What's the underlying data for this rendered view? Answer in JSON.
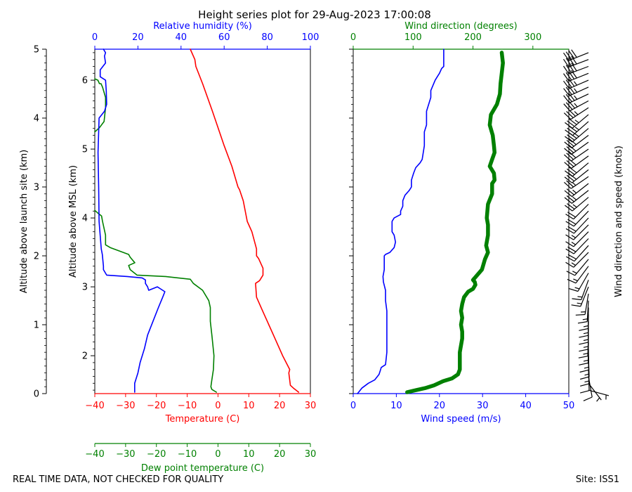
{
  "title": "Height series plot for 29-Aug-2023 17:00:08",
  "footer": {
    "left": "REAL TIME DATA, NOT CHECKED FOR QUALITY",
    "right": "Site: ISS1"
  },
  "colors": {
    "temperature": "#ff0000",
    "humidity": "#0000ff",
    "dewpoint": "#008000",
    "wind_speed": "#0000ff",
    "wind_direction": "#008000",
    "barbs": "#000000"
  },
  "chart_data": [
    {
      "type": "line",
      "name": "thermo-panel",
      "axes": {
        "alt_site": {
          "label": "Altitude above launch site (km)",
          "lim": [
            0,
            5
          ],
          "ticks": [
            "0",
            "1",
            "2",
            "3",
            "4",
            "5"
          ]
        },
        "alt_msl": {
          "label": "Altitude above MSL (km)",
          "lim": [
            1.45,
            6.45
          ],
          "ticks": [
            "2",
            "3",
            "4",
            "5",
            "6"
          ]
        },
        "temperature": {
          "label": "Temperature (C)",
          "lim": [
            -40,
            30
          ],
          "ticks": [
            "−40",
            "−30",
            "−20",
            "−10",
            "0",
            "10",
            "20",
            "30"
          ]
        },
        "dewpoint": {
          "label": "Dew point temperature (C)",
          "lim": [
            -40,
            30
          ],
          "ticks": [
            "−40",
            "−30",
            "−20",
            "−10",
            "0",
            "10",
            "20",
            "30"
          ]
        },
        "humidity": {
          "label": "Relative humidity (%)",
          "lim": [
            0,
            100
          ],
          "ticks": [
            "0",
            "20",
            "40",
            "60",
            "80",
            "100"
          ]
        }
      },
      "series": [
        {
          "name": "Temperature",
          "axis": "temperature",
          "color": "#ff0000",
          "points": [
            [
              26.2,
              0.02
            ],
            [
              24.5,
              0.08
            ],
            [
              23.5,
              0.12
            ],
            [
              23.0,
              0.3
            ],
            [
              23.3,
              0.35
            ],
            [
              21.0,
              0.55
            ],
            [
              18.0,
              0.85
            ],
            [
              14.5,
              1.2
            ],
            [
              12.5,
              1.4
            ],
            [
              12.2,
              1.6
            ],
            [
              13.5,
              1.64
            ],
            [
              14.6,
              1.72
            ],
            [
              14.6,
              1.82
            ],
            [
              13.2,
              1.96
            ],
            [
              12.5,
              2.0
            ],
            [
              12.5,
              2.1
            ],
            [
              11.0,
              2.35
            ],
            [
              9.5,
              2.5
            ],
            [
              8.2,
              2.8
            ],
            [
              7.0,
              2.96
            ],
            [
              6.5,
              3.0
            ],
            [
              4.5,
              3.3
            ],
            [
              2.0,
              3.6
            ],
            [
              -1.8,
              4.1
            ],
            [
              -5.0,
              4.5
            ],
            [
              -7.2,
              4.75
            ],
            [
              -7.5,
              4.85
            ],
            [
              -9.0,
              5.0
            ]
          ]
        },
        {
          "name": "Dew point",
          "axis": "dewpoint",
          "color": "#008000",
          "points": [
            [
              -0.5,
              0.02
            ],
            [
              -2.0,
              0.06
            ],
            [
              -2.3,
              0.1
            ],
            [
              -2.0,
              0.2
            ],
            [
              -1.5,
              0.35
            ],
            [
              -1.3,
              0.55
            ],
            [
              -2.0,
              0.85
            ],
            [
              -2.5,
              1.05
            ],
            [
              -2.5,
              1.25
            ],
            [
              -3.0,
              1.35
            ],
            [
              -5.0,
              1.5
            ],
            [
              -8.0,
              1.6
            ],
            [
              -9.0,
              1.66
            ],
            [
              -17.0,
              1.7
            ],
            [
              -26.3,
              1.72
            ],
            [
              -28.5,
              1.8
            ],
            [
              -29.0,
              1.86
            ],
            [
              -27.0,
              1.9
            ],
            [
              -28.5,
              1.98
            ],
            [
              -29.0,
              2.02
            ],
            [
              -35.0,
              2.12
            ],
            [
              -36.5,
              2.16
            ],
            [
              -36.5,
              2.25
            ],
            [
              -36.5,
              2.3
            ],
            [
              -37.5,
              2.5
            ],
            [
              -37.8,
              2.58
            ],
            [
              -39.0,
              2.62
            ],
            [
              -40,
              2.66
            ]
          ]
        },
        {
          "name": "Dew point (upper)",
          "axis": "dewpoint",
          "color": "#008000",
          "points": [
            [
              -40,
              3.8
            ],
            [
              -38.5,
              3.86
            ],
            [
              -37.0,
              3.95
            ],
            [
              -36.5,
              4.15
            ],
            [
              -36.5,
              4.3
            ],
            [
              -37.5,
              4.45
            ],
            [
              -38.0,
              4.5
            ],
            [
              -38.5,
              4.5
            ],
            [
              -39.0,
              4.55
            ],
            [
              -40,
              4.57
            ]
          ]
        },
        {
          "name": "Relative humidity",
          "axis": "humidity",
          "color": "#0000ff",
          "points": [
            [
              18.5,
              0.02
            ],
            [
              18.5,
              0.15
            ],
            [
              20.0,
              0.3
            ],
            [
              21.0,
              0.45
            ],
            [
              23.0,
              0.65
            ],
            [
              24.5,
              0.85
            ],
            [
              27.0,
              1.05
            ],
            [
              29.5,
              1.25
            ],
            [
              31.5,
              1.4
            ],
            [
              32.5,
              1.48
            ],
            [
              30.5,
              1.52
            ],
            [
              29.0,
              1.55
            ],
            [
              25.0,
              1.5
            ],
            [
              24.5,
              1.55
            ],
            [
              23.5,
              1.6
            ],
            [
              23.5,
              1.65
            ],
            [
              22.0,
              1.68
            ],
            [
              15.0,
              1.7
            ],
            [
              5.5,
              1.72
            ],
            [
              4.0,
              1.8
            ],
            [
              4.0,
              1.85
            ],
            [
              3.5,
              2.02
            ],
            [
              3.0,
              2.1
            ],
            [
              2.0,
              2.5
            ],
            [
              1.8,
              3.0
            ],
            [
              1.5,
              3.5
            ],
            [
              2.0,
              4.0
            ],
            [
              4.5,
              4.1
            ],
            [
              5.5,
              4.2
            ],
            [
              5.3,
              4.4
            ],
            [
              5.0,
              4.55
            ],
            [
              2.5,
              4.6
            ],
            [
              2.5,
              4.7
            ],
            [
              5.0,
              4.8
            ],
            [
              4.5,
              4.9
            ],
            [
              5.0,
              4.95
            ],
            [
              4.0,
              5.0
            ]
          ]
        }
      ]
    },
    {
      "type": "line",
      "name": "wind-panel",
      "axes": {
        "speed": {
          "label": "Wind speed (m/s)",
          "lim": [
            0,
            50
          ],
          "ticks": [
            "0",
            "10",
            "20",
            "30",
            "40",
            "50"
          ]
        },
        "direction": {
          "label": "Wind direction (degrees)",
          "lim": [
            0,
            360
          ],
          "ticks": [
            "0",
            "100",
            "200",
            "300"
          ]
        },
        "barbs": {
          "label": "Wind direction and speed (knots)"
        }
      },
      "series": [
        {
          "name": "Wind speed",
          "axis": "speed",
          "color": "#0000ff",
          "points": [
            [
              1.0,
              0.0
            ],
            [
              2.0,
              0.08
            ],
            [
              3.5,
              0.15
            ],
            [
              5.0,
              0.2
            ],
            [
              6.0,
              0.28
            ],
            [
              6.2,
              0.32
            ],
            [
              6.5,
              0.38
            ],
            [
              7.5,
              0.42
            ],
            [
              7.8,
              0.6
            ],
            [
              7.8,
              0.85
            ],
            [
              7.8,
              1.0
            ],
            [
              7.8,
              1.2
            ],
            [
              7.5,
              1.35
            ],
            [
              7.5,
              1.5
            ],
            [
              7.0,
              1.62
            ],
            [
              6.9,
              1.7
            ],
            [
              7.2,
              1.8
            ],
            [
              7.2,
              2.0
            ],
            [
              7.5,
              2.02
            ],
            [
              8.5,
              2.05
            ],
            [
              9.5,
              2.12
            ],
            [
              9.8,
              2.2
            ],
            [
              9.5,
              2.3
            ],
            [
              9.0,
              2.35
            ],
            [
              9.0,
              2.5
            ],
            [
              9.5,
              2.55
            ],
            [
              11.0,
              2.6
            ],
            [
              11.0,
              2.65
            ],
            [
              11.5,
              2.72
            ],
            [
              11.5,
              2.8
            ],
            [
              12.0,
              2.88
            ],
            [
              13.0,
              2.95
            ],
            [
              13.5,
              3.0
            ],
            [
              13.5,
              3.1
            ],
            [
              14.0,
              3.2
            ],
            [
              14.5,
              3.28
            ],
            [
              15.5,
              3.35
            ],
            [
              16.0,
              3.4
            ],
            [
              16.5,
              3.6
            ],
            [
              16.5,
              3.8
            ],
            [
              17.0,
              3.9
            ],
            [
              17.0,
              4.1
            ],
            [
              18.0,
              4.3
            ],
            [
              18.0,
              4.4
            ],
            [
              19.0,
              4.55
            ],
            [
              19.5,
              4.6
            ],
            [
              20.0,
              4.65
            ],
            [
              20.5,
              4.72
            ],
            [
              21.0,
              4.75
            ],
            [
              21.0,
              5.0
            ]
          ]
        },
        {
          "name": "Wind direction",
          "axis": "direction",
          "color": "#008000",
          "points": [
            [
              90,
              0.02
            ],
            [
              105,
              0.05
            ],
            [
              120,
              0.08
            ],
            [
              135,
              0.12
            ],
            [
              150,
              0.18
            ],
            [
              165,
              0.22
            ],
            [
              175,
              0.28
            ],
            [
              178,
              0.35
            ],
            [
              178,
              0.5
            ],
            [
              178,
              0.6
            ],
            [
              180,
              0.7
            ],
            [
              182,
              0.8
            ],
            [
              182,
              0.9
            ],
            [
              180,
              1.0
            ],
            [
              182,
              1.1
            ],
            [
              180,
              1.2
            ],
            [
              182,
              1.3
            ],
            [
              185,
              1.4
            ],
            [
              192,
              1.48
            ],
            [
              200,
              1.52
            ],
            [
              204,
              1.58
            ],
            [
              203,
              1.62
            ],
            [
              200,
              1.65
            ],
            [
              205,
              1.7
            ],
            [
              215,
              1.8
            ],
            [
              220,
              1.95
            ],
            [
              225,
              2.05
            ],
            [
              222,
              2.15
            ],
            [
              225,
              2.3
            ],
            [
              225,
              2.45
            ],
            [
              223,
              2.55
            ],
            [
              225,
              2.75
            ],
            [
              232,
              2.9
            ],
            [
              232,
              3.05
            ],
            [
              236,
              3.1
            ],
            [
              235,
              3.2
            ],
            [
              228,
              3.3
            ],
            [
              232,
              3.4
            ],
            [
              236,
              3.5
            ],
            [
              235,
              3.6
            ],
            [
              233,
              3.75
            ],
            [
              228,
              3.9
            ],
            [
              230,
              4.05
            ],
            [
              240,
              4.2
            ],
            [
              245,
              4.35
            ],
            [
              246,
              4.5
            ],
            [
              248,
              4.65
            ],
            [
              250,
              4.8
            ],
            [
              248,
              4.95
            ]
          ]
        }
      ]
    }
  ]
}
